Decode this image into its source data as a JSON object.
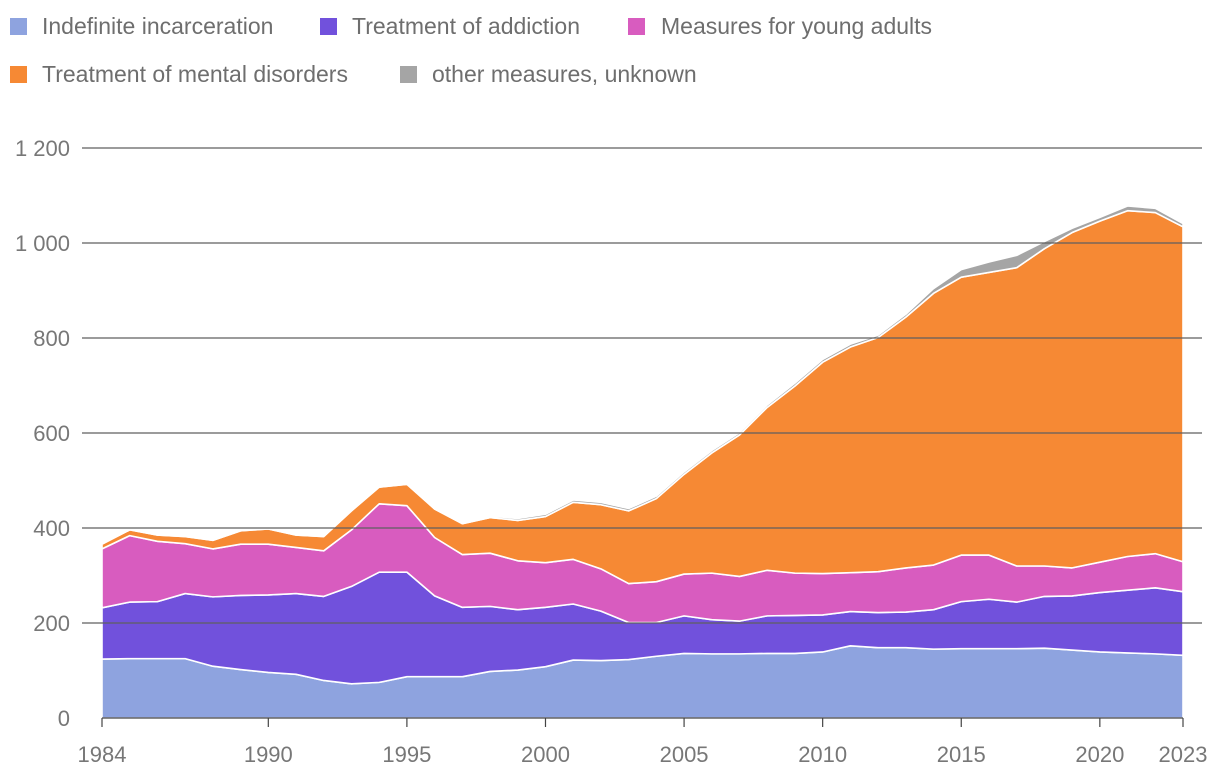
{
  "chart_data": {
    "type": "area",
    "stacked": true,
    "title": "",
    "xlabel": "",
    "ylabel": "",
    "grid": true,
    "legend_position": "top-left",
    "xlim": [
      1984,
      2023
    ],
    "ylim": [
      0,
      1200
    ],
    "x_ticks": [
      1984,
      1990,
      1995,
      2000,
      2005,
      2010,
      2015,
      2020,
      2023
    ],
    "x_tick_labels": [
      "1984",
      "1990",
      "1995",
      "2000",
      "2005",
      "2010",
      "2015",
      "2020",
      "2023"
    ],
    "y_ticks": [
      0,
      200,
      400,
      600,
      800,
      1000,
      1200
    ],
    "y_tick_labels": [
      "0",
      "200",
      "400",
      "600",
      "800",
      "1 000",
      "1 200"
    ],
    "x": [
      1984,
      1985,
      1986,
      1987,
      1988,
      1989,
      1990,
      1991,
      1992,
      1993,
      1994,
      1995,
      1996,
      1997,
      1998,
      1999,
      2000,
      2001,
      2002,
      2003,
      2004,
      2005,
      2006,
      2007,
      2008,
      2009,
      2010,
      2011,
      2012,
      2013,
      2014,
      2015,
      2016,
      2017,
      2018,
      2019,
      2020,
      2021,
      2022,
      2023
    ],
    "series": [
      {
        "name": "Indefinite incarceration",
        "color": "#8ea3df",
        "values": [
          124,
          125,
          125,
          125,
          109,
          102,
          96,
          92,
          79,
          72,
          75,
          87,
          87,
          87,
          98,
          101,
          108,
          122,
          121,
          123,
          130,
          136,
          135,
          135,
          136,
          136,
          139,
          152,
          148,
          148,
          145,
          146,
          146,
          146,
          147,
          143,
          139,
          137,
          135,
          132
        ]
      },
      {
        "name": "Treatment of addiction",
        "color": "#7151dc",
        "values": [
          108,
          119,
          120,
          137,
          146,
          156,
          163,
          170,
          177,
          205,
          232,
          220,
          170,
          146,
          137,
          127,
          125,
          118,
          104,
          78,
          71,
          79,
          72,
          69,
          79,
          80,
          78,
          72,
          74,
          75,
          83,
          99,
          104,
          98,
          109,
          114,
          125,
          132,
          139,
          134
        ]
      },
      {
        "name": "Measures for young adults",
        "color": "#d85cbf",
        "values": [
          124,
          140,
          127,
          105,
          101,
          108,
          107,
          97,
          96,
          119,
          144,
          140,
          123,
          111,
          112,
          103,
          94,
          94,
          89,
          82,
          86,
          88,
          98,
          94,
          96,
          89,
          87,
          82,
          86,
          93,
          94,
          98,
          93,
          76,
          64,
          59,
          64,
          71,
          72,
          63
        ]
      },
      {
        "name": "Treatment of mental disorders",
        "color": "#f68934",
        "values": [
          10,
          12,
          13,
          15,
          18,
          28,
          32,
          26,
          30,
          40,
          35,
          45,
          60,
          65,
          75,
          85,
          97,
          120,
          135,
          153,
          175,
          210,
          253,
          298,
          343,
          394,
          445,
          475,
          493,
          528,
          572,
          585,
          595,
          628,
          668,
          706,
          718,
          728,
          718,
          705
        ]
      },
      {
        "name": "other measures, unknown",
        "color": "#a5a5a5",
        "values": [
          0,
          0,
          0,
          0,
          0,
          0,
          0,
          0,
          0,
          0,
          0,
          0,
          0,
          2,
          3,
          4,
          5,
          5,
          5,
          5,
          5,
          5,
          5,
          5,
          5,
          6,
          6,
          6,
          5,
          6,
          10,
          16,
          22,
          26,
          15,
          9,
          8,
          10,
          9,
          7
        ]
      }
    ]
  },
  "legend": {
    "items": [
      {
        "label": "Indefinite incarceration",
        "color": "#8ea3df"
      },
      {
        "label": "Treatment of addiction",
        "color": "#7151dc"
      },
      {
        "label": "Measures for young adults",
        "color": "#d85cbf"
      },
      {
        "label": "Treatment of mental disorders",
        "color": "#f68934"
      },
      {
        "label": "other measures, unknown",
        "color": "#a5a5a5"
      }
    ]
  }
}
